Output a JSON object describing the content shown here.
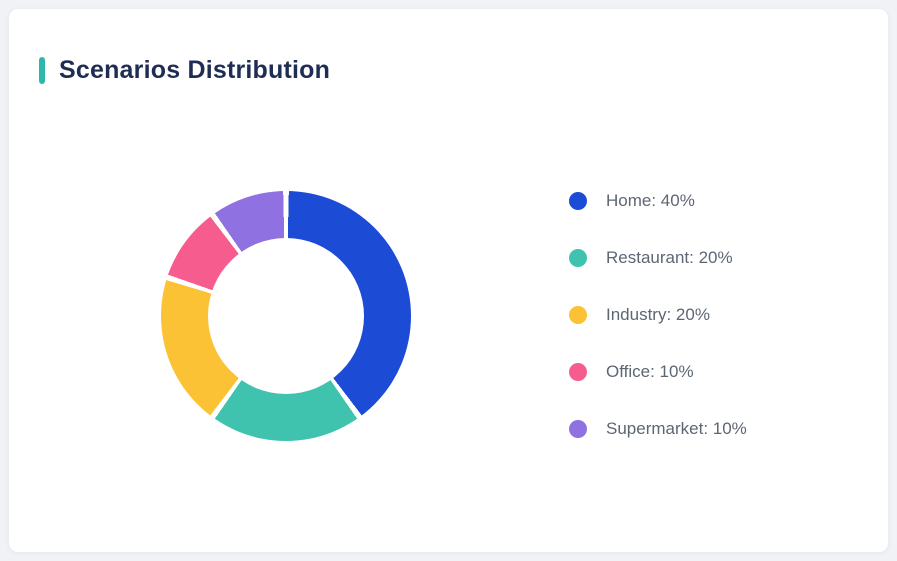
{
  "card": {
    "title": "Scenarios Distribution"
  },
  "chart_data": {
    "type": "pie",
    "subtype": "donut",
    "title": "Scenarios Distribution",
    "categories": [
      "Home",
      "Restaurant",
      "Industry",
      "Office",
      "Supermarket"
    ],
    "values": [
      40,
      20,
      20,
      10,
      10
    ],
    "unit": "%",
    "colors": [
      "#1c4bd6",
      "#3fc3ae",
      "#fcc236",
      "#f75c8f",
      "#8f71e1"
    ],
    "start_angle_deg": 0,
    "direction": "clockwise",
    "inner_radius_ratio": 0.62,
    "segment_gap_deg": 2.6,
    "legend_position": "right",
    "legend_labels": [
      "Home: 40%",
      "Restaurant: 20%",
      "Industry: 20%",
      "Office: 10%",
      "Supermarket: 10%"
    ]
  },
  "colors": {
    "accent": "#2eb8ac",
    "title_text": "#1f2d54",
    "legend_text": "#5d6673",
    "card_bg": "#ffffff",
    "page_bg": "#f0f2f6"
  }
}
